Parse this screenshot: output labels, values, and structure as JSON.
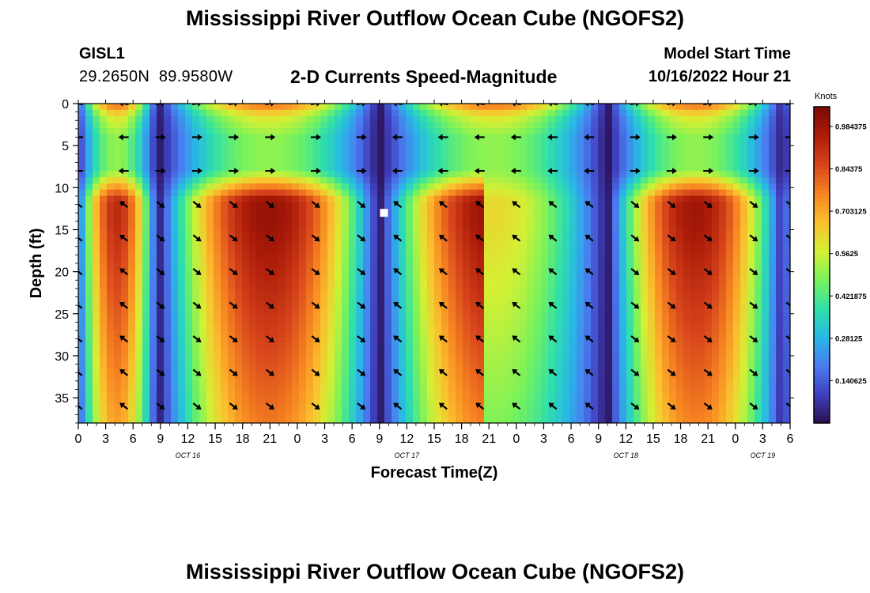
{
  "page": {
    "title": "Mississippi River Outflow Ocean Cube (NGOFS2)",
    "title_repeat": "Mississippi River Outflow Ocean Cube (NGOFS2)",
    "station_id": "GISL1",
    "station_coords": "29.2650N  89.9580W",
    "plot_subtitle": "2-D Currents Speed-Magnitude",
    "model_start_label": "Model Start Time",
    "model_start_value": "10/16/2022 Hour 21"
  },
  "chart_data": {
    "type": "heatmap",
    "title": "2-D Currents Speed-Magnitude",
    "xlabel": "Forecast Time(Z)",
    "ylabel": "Depth (ft)",
    "x_hours_from_oct16_00Z": [
      0,
      78
    ],
    "x_tick_values": [
      0,
      3,
      6,
      9,
      12,
      15,
      18,
      21,
      24,
      27,
      30,
      33,
      36,
      39,
      42,
      45,
      48,
      51,
      54,
      57,
      60,
      63,
      66,
      69,
      72,
      75,
      78
    ],
    "x_tick_labels": [
      "0",
      "3",
      "6",
      "9",
      "12",
      "15",
      "18",
      "21",
      "0",
      "3",
      "6",
      "9",
      "12",
      "15",
      "18",
      "21",
      "0",
      "3",
      "6",
      "9",
      "12",
      "15",
      "18",
      "21",
      "0",
      "3",
      "6"
    ],
    "date_labels": [
      {
        "label": "OCT 16",
        "hour": 12
      },
      {
        "label": "OCT 17",
        "hour": 36
      },
      {
        "label": "OCT 18",
        "hour": 60
      },
      {
        "label": "OCT 19",
        "hour": 75
      }
    ],
    "y_range_ft": [
      0,
      38
    ],
    "y_tick_values": [
      0,
      5,
      10,
      15,
      20,
      25,
      30,
      35
    ],
    "y_tick_labels": [
      "0",
      "5",
      "10",
      "15",
      "20",
      "25",
      "30",
      "35"
    ],
    "colorbar": {
      "unit": "Knots",
      "range": [
        0,
        1.05
      ],
      "tick_values": [
        0.140625,
        0.28125,
        0.421875,
        0.5625,
        0.703125,
        0.84375,
        0.984375
      ],
      "tick_labels": [
        "0.140625",
        "0.28125",
        "0.421875",
        "0.5625",
        "0.703125",
        "0.84375",
        "0.984375"
      ],
      "colors": [
        "#2a0f4f",
        "#3f3fbe",
        "#4b7bf0",
        "#28b8e6",
        "#30e0a8",
        "#7af25a",
        "#d4f034",
        "#fbc02e",
        "#f68321",
        "#d7451c",
        "#ad1c09",
        "#7d0a04"
      ]
    },
    "tidal_cycle": {
      "slack_hours": [
        8.7,
        33,
        58,
        77.3
      ],
      "peak_hours": [
        0,
        16.5,
        40.5,
        49,
        66
      ],
      "peak_speeds_knots": [
        0.92,
        1.0,
        1.0,
        0.62,
        0.98
      ]
    },
    "surface_layer": {
      "depths_ft": [
        0,
        1.5,
        4,
        8
      ],
      "speeds_knots_at_peaks": [
        0.8,
        0.6,
        0.5,
        0.5
      ]
    },
    "arrow_depths_ft": [
      0,
      4,
      8,
      12,
      16,
      20,
      24,
      28,
      32,
      36
    ],
    "arrow_hours": [
      0,
      5,
      9,
      13,
      17,
      21,
      26,
      31,
      35,
      40,
      44,
      48,
      52,
      56,
      61,
      65,
      69,
      74,
      78
    ],
    "marker": {
      "hour": 33.5,
      "depth_ft": 13
    }
  }
}
